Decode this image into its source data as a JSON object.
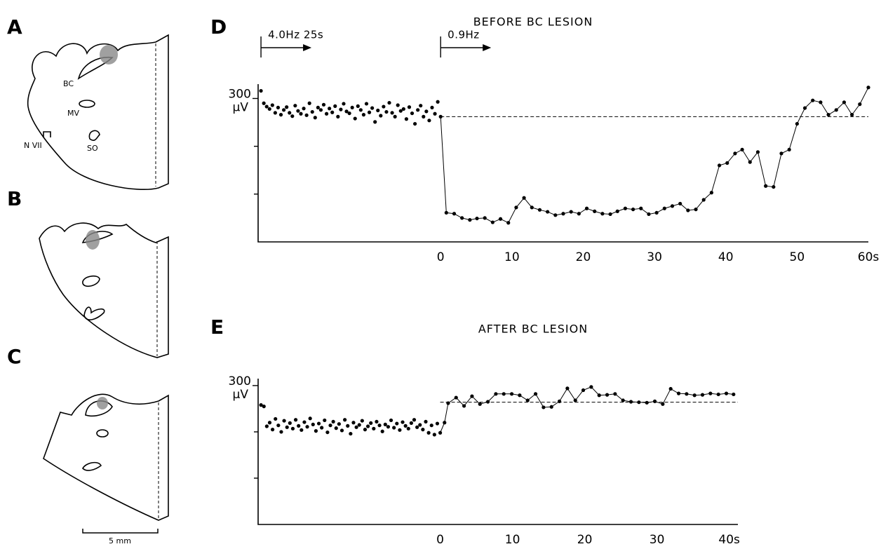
{
  "panel_labels": [
    "A",
    "B",
    "C",
    "D",
    "E"
  ],
  "anatomy": {
    "labels": [
      "BC",
      "MV",
      "N VII",
      "SO"
    ],
    "scale_bar": "5 mm"
  },
  "chart_data": [
    {
      "type": "scatter-line",
      "title": "BEFORE BC LESION",
      "y_unit": "μV",
      "xlim": [
        -25.6,
        60
      ],
      "ylim": [
        0,
        330
      ],
      "xticks": [
        0,
        10,
        20,
        30,
        40,
        50,
        {
          "value": 60,
          "label": "60s"
        }
      ],
      "yticks": [
        300
      ],
      "y_minor_ticks": [
        100,
        200
      ],
      "reference_line": 262,
      "annotations": [
        {
          "text": "4.0Hz 25s",
          "x": -25.2
        },
        {
          "text": "0.9Hz",
          "x": 0
        }
      ],
      "series": [
        {
          "style": "dots",
          "color": "#000",
          "x": [
            -25.2,
            -24.8,
            -24.4,
            -24.0,
            -23.6,
            -23.2,
            -22.8,
            -22.4,
            -22.0,
            -21.6,
            -21.2,
            -20.8,
            -20.4,
            -20.0,
            -19.6,
            -19.2,
            -18.8,
            -18.4,
            -18.0,
            -17.6,
            -17.2,
            -16.8,
            -16.4,
            -16.0,
            -15.6,
            -15.2,
            -14.8,
            -14.4,
            -14.0,
            -13.6,
            -13.2,
            -12.8,
            -12.4,
            -12.0,
            -11.6,
            -11.2,
            -10.8,
            -10.4,
            -10.0,
            -9.6,
            -9.2,
            -8.8,
            -8.4,
            -8.0,
            -7.6,
            -7.2,
            -6.8,
            -6.4,
            -6.0,
            -5.6,
            -5.2,
            -4.8,
            -4.4,
            -4.0,
            -3.6,
            -3.2,
            -2.8,
            -2.4,
            -2.0,
            -1.6,
            -1.2,
            -0.8,
            -0.4
          ],
          "values": [
            316,
            290,
            283,
            278,
            286,
            270,
            281,
            266,
            276,
            282,
            270,
            263,
            285,
            274,
            268,
            279,
            265,
            290,
            272,
            260,
            281,
            276,
            287,
            268,
            279,
            271,
            284,
            262,
            277,
            289,
            273,
            269,
            281,
            258,
            284,
            276,
            266,
            289,
            271,
            280,
            251,
            275,
            264,
            283,
            272,
            291,
            270,
            262,
            286,
            274,
            278,
            257,
            282,
            269,
            247,
            276,
            285,
            262,
            273,
            254,
            281,
            268,
            293
          ]
        },
        {
          "style": "line",
          "color": "#000",
          "x": [
            0,
            0.8,
            1.9,
            3.0,
            4.1,
            5.1,
            6.2,
            7.3,
            8.4,
            9.5,
            10.6,
            11.7,
            12.8,
            13.9,
            15.0,
            16.1,
            17.2,
            18.3,
            19.4,
            20.5,
            21.6,
            22.7,
            23.8,
            24.8,
            25.9,
            27.0,
            28.1,
            29.2,
            30.3,
            31.4,
            32.5,
            33.6,
            34.7,
            35.8,
            36.9,
            38.0,
            39.1,
            40.2,
            41.3,
            42.3,
            43.4,
            44.5,
            45.6,
            46.7,
            47.8,
            48.9,
            50.0,
            51.1,
            52.2,
            53.3,
            54.4,
            55.5,
            56.6,
            57.7,
            58.8,
            60.0
          ],
          "values": [
            262,
            61,
            59,
            50,
            46,
            49,
            50,
            41,
            48,
            40,
            72,
            92,
            72,
            67,
            63,
            56,
            59,
            63,
            59,
            70,
            64,
            59,
            58,
            64,
            70,
            68,
            70,
            58,
            61,
            70,
            75,
            80,
            66,
            68,
            88,
            103,
            160,
            165,
            185,
            193,
            167,
            188,
            117,
            115,
            185,
            193,
            247,
            280,
            296,
            292,
            266,
            276,
            292,
            266,
            288,
            323
          ]
        }
      ]
    },
    {
      "type": "scatter-line",
      "title": "AFTER BC LESION",
      "y_unit": "μV",
      "xlim": [
        -25.2,
        41.2
      ],
      "ylim": [
        0,
        315
      ],
      "xticks": [
        0,
        10,
        20,
        30,
        {
          "value": 40,
          "label": "40s"
        }
      ],
      "yticks": [
        300
      ],
      "y_minor_ticks": [
        100,
        200
      ],
      "reference_line": 264,
      "series": [
        {
          "style": "dots",
          "color": "#000",
          "x": [
            -24.8,
            -24.4,
            -24.0,
            -23.6,
            -23.2,
            -22.8,
            -22.4,
            -22.0,
            -21.6,
            -21.2,
            -20.8,
            -20.4,
            -20.0,
            -19.6,
            -19.2,
            -18.8,
            -18.4,
            -18.0,
            -17.6,
            -17.2,
            -16.8,
            -16.4,
            -16.0,
            -15.6,
            -15.2,
            -14.8,
            -14.4,
            -14.0,
            -13.6,
            -13.2,
            -12.8,
            -12.4,
            -12.0,
            -11.6,
            -11.2,
            -10.8,
            -10.4,
            -10.0,
            -9.6,
            -9.2,
            -8.8,
            -8.4,
            -8.0,
            -7.6,
            -7.2,
            -6.8,
            -6.4,
            -6.0,
            -5.6,
            -5.2,
            -4.8,
            -4.4,
            -4.0,
            -3.6,
            -3.2,
            -2.8,
            -2.4,
            -2.0,
            -1.6,
            -1.2,
            -0.8,
            -0.4
          ],
          "values": [
            258,
            255,
            212,
            220,
            205,
            228,
            214,
            200,
            224,
            210,
            219,
            207,
            226,
            213,
            204,
            221,
            211,
            229,
            216,
            202,
            218,
            209,
            225,
            199,
            214,
            222,
            208,
            217,
            203,
            226,
            213,
            196,
            220,
            210,
            215,
            224,
            205,
            212,
            219,
            207,
            222,
            214,
            201,
            216,
            211,
            225,
            209,
            218,
            204,
            221,
            213,
            207,
            219,
            226,
            210,
            215,
            205,
            222,
            198,
            214,
            194,
            218
          ]
        },
        {
          "style": "line",
          "color": "#000",
          "x": [
            0,
            0.6,
            1.1,
            2.2,
            3.3,
            4.4,
            5.5,
            6.6,
            7.7,
            8.8,
            9.9,
            11.0,
            12.1,
            13.2,
            14.3,
            15.4,
            16.5,
            17.6,
            18.7,
            19.8,
            20.9,
            22.0,
            23.1,
            24.2,
            25.3,
            26.4,
            27.5,
            28.6,
            29.7,
            30.8,
            31.9,
            33.0,
            34.1,
            35.2,
            36.3,
            37.4,
            38.5,
            39.6,
            40.6
          ],
          "values": [
            198,
            220,
            262,
            274,
            256,
            277,
            260,
            265,
            282,
            282,
            282,
            279,
            268,
            282,
            253,
            254,
            266,
            294,
            268,
            290,
            297,
            279,
            280,
            282,
            268,
            265,
            264,
            263,
            266,
            260,
            293,
            283,
            282,
            279,
            280,
            283,
            281,
            283,
            281
          ]
        }
      ]
    }
  ]
}
